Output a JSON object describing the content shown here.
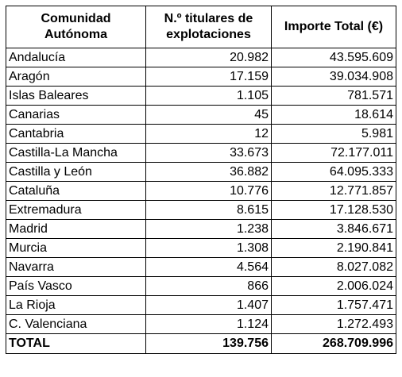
{
  "table": {
    "headers": {
      "region": [
        "Comunidad",
        "Autónoma"
      ],
      "holders": [
        "N.º titulares de",
        "explotaciones"
      ],
      "amount": "Importe Total (€)"
    },
    "rows": [
      {
        "region": "Andalucía",
        "holders": "20.982",
        "amount": "43.595.609"
      },
      {
        "region": "Aragón",
        "holders": "17.159",
        "amount": "39.034.908"
      },
      {
        "region": "Islas Baleares",
        "holders": "1.105",
        "amount": "781.571"
      },
      {
        "region": "Canarias",
        "holders": "45",
        "amount": "18.614"
      },
      {
        "region": "Cantabria",
        "holders": "12",
        "amount": "5.981"
      },
      {
        "region": "Castilla-La Mancha",
        "holders": "33.673",
        "amount": "72.177.011"
      },
      {
        "region": "Castilla y León",
        "holders": "36.882",
        "amount": "64.095.333"
      },
      {
        "region": "Cataluña",
        "holders": "10.776",
        "amount": "12.771.857"
      },
      {
        "region": "Extremadura",
        "holders": "8.615",
        "amount": "17.128.530"
      },
      {
        "region": "Madrid",
        "holders": "1.238",
        "amount": "3.846.671"
      },
      {
        "region": "Murcia",
        "holders": "1.308",
        "amount": "2.190.841"
      },
      {
        "region": "Navarra",
        "holders": "4.564",
        "amount": "8.027.082"
      },
      {
        "region": "País Vasco",
        "holders": "866",
        "amount": "2.006.024"
      },
      {
        "region": "La Rioja",
        "holders": "1.407",
        "amount": "1.757.471"
      },
      {
        "region": "C. Valenciana",
        "holders": "1.124",
        "amount": "1.272.493"
      }
    ],
    "total": {
      "region": "TOTAL",
      "holders": "139.756",
      "amount": "268.709.996"
    }
  }
}
